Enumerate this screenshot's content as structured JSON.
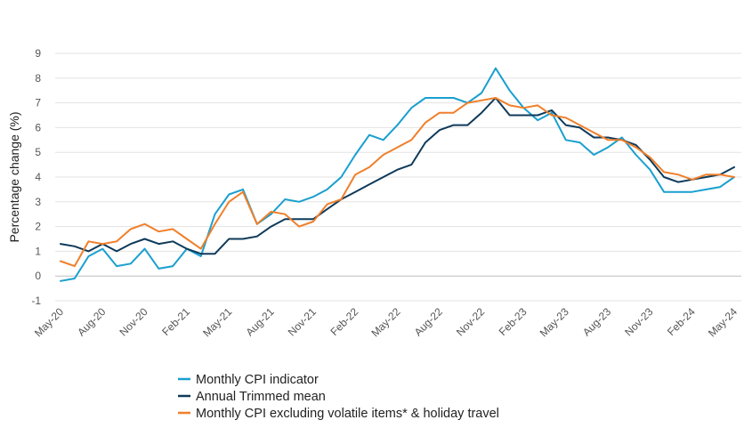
{
  "chart_data": {
    "type": "line",
    "title": "",
    "ylabel": "Percentage change (%)",
    "xlabel": "",
    "ylim": [
      -1,
      9
    ],
    "yticks": [
      -1,
      0,
      1,
      2,
      3,
      4,
      5,
      6,
      7,
      8,
      9
    ],
    "grid": "horizontal",
    "legend_position": "bottom",
    "x_start": "May-20",
    "xtick_labels": [
      "May-20",
      "Aug-20",
      "Nov-20",
      "Feb-21",
      "May-21",
      "Aug-21",
      "Nov-21",
      "Feb-22",
      "May-22",
      "Aug-22",
      "Nov-22",
      "Feb-23",
      "May-23",
      "Aug-23",
      "Nov-23",
      "Feb-24",
      "May-24"
    ],
    "series": [
      {
        "name": "Monthly CPI indicator",
        "color": "#1a9fcf",
        "values": [
          -0.2,
          -0.1,
          0.8,
          1.1,
          0.4,
          0.5,
          1.1,
          0.3,
          0.4,
          1.1,
          0.8,
          2.5,
          3.3,
          3.5,
          2.1,
          2.5,
          3.1,
          3.0,
          3.2,
          3.5,
          4.0,
          4.9,
          5.7,
          5.5,
          6.1,
          6.8,
          7.2,
          7.2,
          7.2,
          7.0,
          7.4,
          8.4,
          7.5,
          6.8,
          6.3,
          6.6,
          5.5,
          5.4,
          4.9,
          5.2,
          5.6,
          4.9,
          4.3,
          3.4,
          3.4,
          3.4,
          3.5,
          3.6,
          4.0
        ]
      },
      {
        "name": "Annual Trimmed mean",
        "color": "#0e3a5a",
        "values": [
          1.3,
          1.2,
          1.0,
          1.3,
          1.0,
          1.3,
          1.5,
          1.3,
          1.4,
          1.1,
          0.9,
          0.9,
          1.5,
          1.5,
          1.6,
          2.0,
          2.3,
          2.3,
          2.3,
          2.7,
          3.1,
          3.4,
          3.7,
          4.0,
          4.3,
          4.5,
          5.4,
          5.9,
          6.1,
          6.1,
          6.6,
          7.2,
          6.5,
          6.5,
          6.5,
          6.7,
          6.1,
          6.0,
          5.6,
          5.6,
          5.5,
          5.3,
          4.7,
          4.0,
          3.8,
          3.9,
          4.0,
          4.1,
          4.4
        ]
      },
      {
        "name": "Monthly CPI excluding volatile items* & holiday travel",
        "color": "#f07f2a",
        "values": [
          0.6,
          0.4,
          1.4,
          1.3,
          1.4,
          1.9,
          2.1,
          1.8,
          1.9,
          1.5,
          1.1,
          2.1,
          3.0,
          3.4,
          2.1,
          2.6,
          2.5,
          2.0,
          2.2,
          2.9,
          3.1,
          4.1,
          4.4,
          4.9,
          5.2,
          5.5,
          6.2,
          6.6,
          6.6,
          7.0,
          7.1,
          7.2,
          6.9,
          6.8,
          6.9,
          6.5,
          6.4,
          6.1,
          5.8,
          5.5,
          5.5,
          5.2,
          4.8,
          4.2,
          4.1,
          3.9,
          4.1,
          4.1,
          4.0
        ]
      }
    ]
  }
}
